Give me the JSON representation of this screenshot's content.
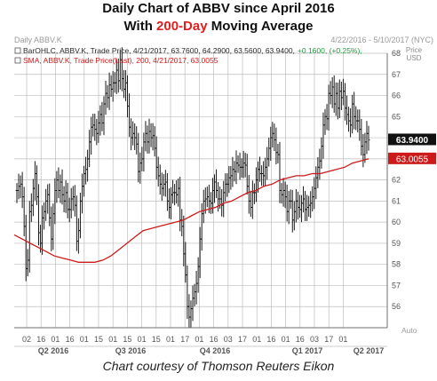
{
  "title": {
    "line1": "Daily Chart of ABBV since April 2016",
    "line2_pre": "With ",
    "line2_hl": "200-Day",
    "line2_post": " Moving Average"
  },
  "caption": "Chart courtesy of Thomson Reuters Eikon",
  "colors": {
    "bars": "#1a1a1a",
    "sma": "#cc1a1a",
    "highlight": "#e02020",
    "grid": "#bdbdbd"
  },
  "chart_data": {
    "type": "line",
    "header": {
      "symbol": "Daily ABBV.K",
      "range": "4/22/2016 - 5/10/2017 (NYC)",
      "ohlc_legend": "BarOHLC, ABBV.K, Trade Price, 4/21/2017, 63.7600, 64.2900, 63.5600, 63.9400,",
      "ohlc_change": "+0.1600, (+0.25%),",
      "sma_legend": "SMA, ABBV.K, Trade Price(Last), 200, 4/21/2017, 63.0055"
    },
    "ylim": [
      55,
      68
    ],
    "y_ticks": [
      56,
      57,
      58,
      59,
      60,
      61,
      62,
      63,
      64,
      65,
      66,
      67,
      68
    ],
    "y_unit": "Price\nUSD",
    "axis_scale_label": "Auto",
    "last_price_label": "63.9400",
    "sma_last_label": "63.0055",
    "x_tick_labels": [
      "02",
      "16",
      "01",
      "16",
      "01",
      "15",
      "01",
      "15",
      "01",
      "15",
      "01",
      "17",
      "01",
      "16",
      "03",
      "17",
      "01",
      "16",
      "01",
      "16",
      "03",
      "17",
      "01"
    ],
    "x_period_labels": [
      "Q2 2016",
      "Q3 2016",
      "Q4 2016",
      "Q1 2017",
      "Q2 2017"
    ],
    "series": [
      {
        "type": "ohlc",
        "values": [
          61.5,
          61.7,
          61.8,
          61.2,
          59.8,
          57.8,
          58.2,
          60.5,
          60.8,
          61.6,
          62.3,
          61.2,
          59.5,
          59.0,
          60.2,
          60.5,
          61.0,
          61.3,
          60.2,
          59.2,
          60.4,
          61.5,
          62.0,
          61.5,
          61.9,
          61.3,
          61.0,
          61.4,
          60.6,
          60.6,
          61.1,
          61.2,
          60.8,
          59.1,
          59.6,
          61.0,
          61.7,
          62.3,
          62.5,
          63.0,
          63.8,
          64.5,
          64.6,
          64.4,
          64.2,
          64.7,
          65.1,
          64.7,
          65.6,
          66.1,
          65.9,
          66.5,
          66.3,
          66.6,
          66.6,
          67.2,
          66.7,
          67.7,
          66.8,
          66.3,
          66.6,
          65.5,
          64.5,
          64.0,
          64.2,
          64.0,
          63.7,
          62.4,
          62.8,
          63.0,
          63.8,
          64.2,
          63.8,
          64.3,
          64.0,
          64.1,
          63.5,
          62.6,
          62.2,
          61.8,
          61.6,
          61.8,
          61.9,
          61.0,
          60.7,
          61.3,
          61.4,
          61.4,
          61.3,
          61.6,
          60.1,
          59.8,
          58.5,
          57.5,
          56.0,
          55.5,
          55.9,
          56.4,
          56.7,
          57.1,
          57.9,
          59.2,
          60.4,
          61.0,
          61.1,
          61.2,
          61.0,
          60.9,
          61.5,
          61.9,
          61.5,
          61.1,
          61.1,
          60.8,
          61.4,
          61.8,
          61.8,
          62.1,
          62.2,
          62.5,
          62.4,
          62.8,
          62.7,
          62.6,
          62.6,
          62.8,
          62.7,
          61.7,
          61.0,
          60.7,
          61.4,
          61.4,
          62.0,
          62.5,
          62.3,
          62.3,
          62.2,
          62.6,
          63.0,
          63.5,
          64.0,
          64.2,
          63.9,
          63.3,
          63.2,
          61.5,
          61.3,
          61.5,
          61.2,
          60.5,
          61.0,
          61.0,
          60.1,
          60.5,
          61.0,
          60.7,
          60.6,
          60.9,
          61.1,
          60.6,
          60.7,
          60.8,
          60.9,
          61.2,
          61.6,
          62.1,
          62.6,
          62.9,
          63.6,
          64.6,
          65.0,
          64.9,
          66.1,
          66.0,
          66.4,
          65.6,
          66.1,
          65.4,
          66.2,
          65.9,
          66.2,
          65.4,
          65.1,
          64.8,
          64.6,
          65.6,
          65.0,
          64.8,
          64.8,
          64.4,
          63.6,
          63.2,
          63.8,
          64.2,
          63.9
        ]
      },
      {
        "name": "SMA 200",
        "type": "line",
        "values": [
          59.4,
          59.2,
          59.0,
          58.8,
          58.6,
          58.4,
          58.3,
          58.2,
          58.1,
          58.1,
          58.1,
          58.2,
          58.4,
          58.7,
          59.0,
          59.3,
          59.6,
          59.7,
          59.8,
          59.9,
          60.0,
          60.1,
          60.3,
          60.5,
          60.6,
          60.7,
          60.9,
          61.0,
          61.2,
          61.4,
          61.5,
          61.7,
          61.8,
          62.0,
          62.1,
          62.2,
          62.2,
          62.3,
          62.3,
          62.4,
          62.5,
          62.6,
          62.8,
          62.9,
          63.0
        ]
      }
    ]
  }
}
